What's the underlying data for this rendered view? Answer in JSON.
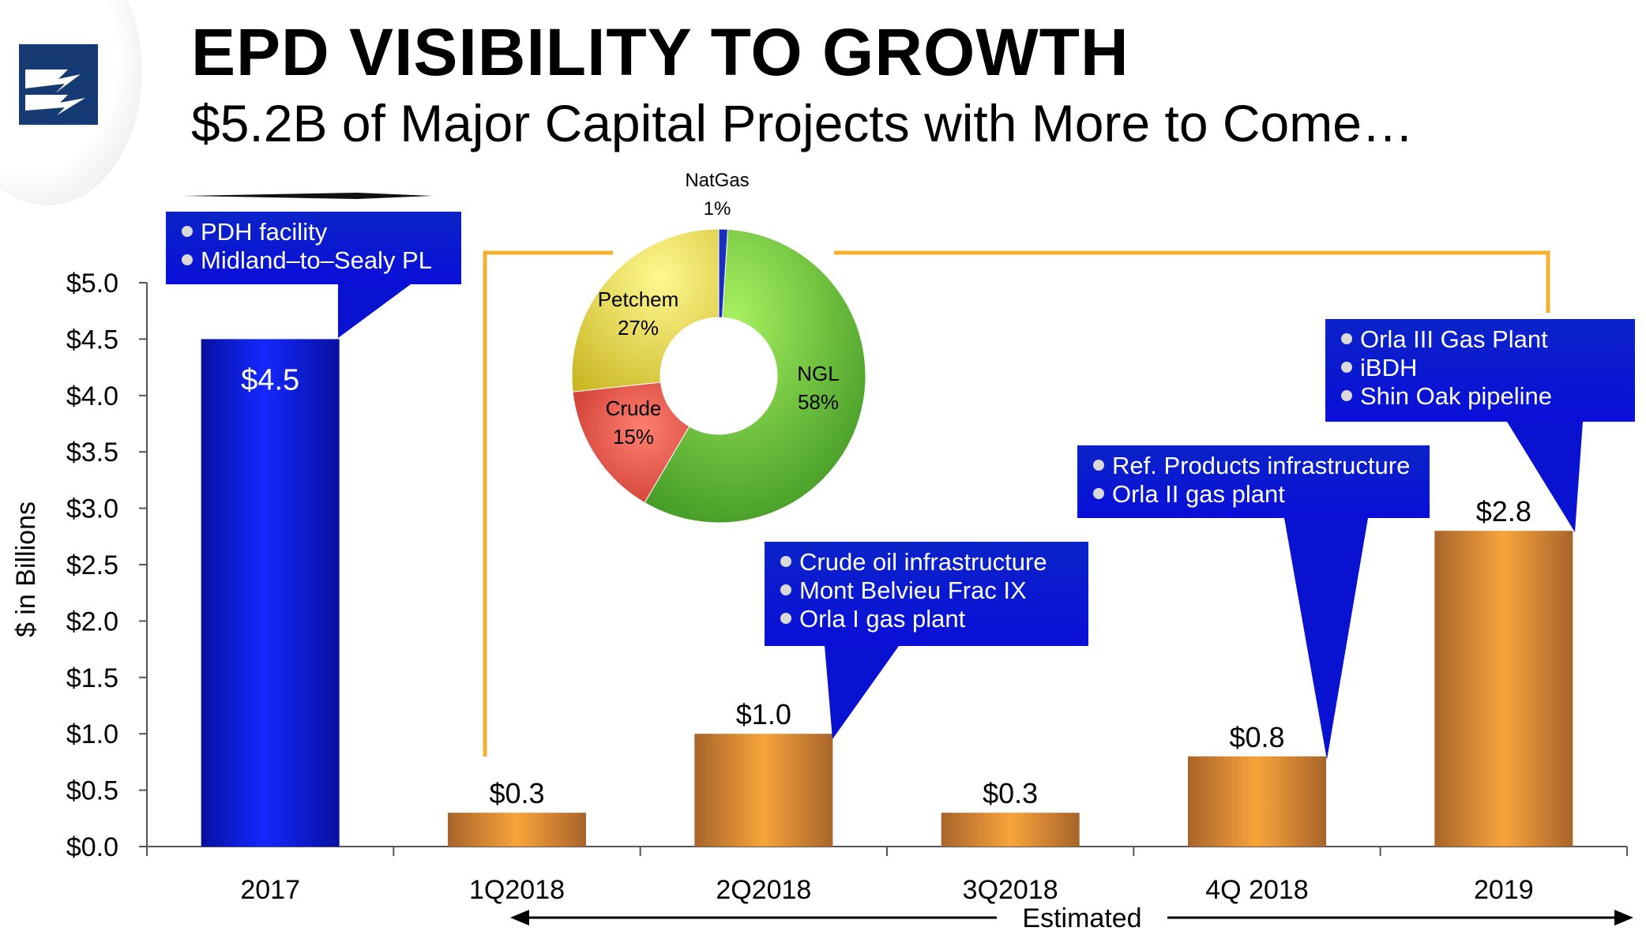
{
  "header": {
    "title": "EPD VISIBILITY TO GROWTH",
    "subtitle": "$5.2B of Major Capital Projects with More to Come…"
  },
  "colors": {
    "historical_bar": "#0a14d0",
    "estimated_bar": "#f0a040",
    "callout": "#0a12d2",
    "connector": "#f5b030",
    "donut_ngl": "#5ab832",
    "donut_petchem": "#e6d840",
    "donut_crude": "#e05046",
    "donut_natgas": "#1a2fc0"
  },
  "icons": [
    "company-logo-icon"
  ],
  "chart_data": [
    {
      "type": "bar",
      "ylabel": "$ in Billions",
      "ylim": [
        0,
        5.0
      ],
      "yticks": [
        "$0.0",
        "$0.5",
        "$1.0",
        "$1.5",
        "$2.0",
        "$2.5",
        "$3.0",
        "$3.5",
        "$4.0",
        "$4.5",
        "$5.0"
      ],
      "categories": [
        "2017",
        "1Q2018",
        "2Q2018",
        "3Q2018",
        "4Q 2018",
        "2019"
      ],
      "values": [
        4.5,
        0.3,
        1.0,
        0.3,
        0.8,
        2.8
      ],
      "data_labels": [
        "$4.5",
        "$0.3",
        "$1.0",
        "$0.3",
        "$0.8",
        "$2.8"
      ],
      "estimated_label": "Estimated",
      "annotations": [
        {
          "category": "2017",
          "items": [
            "PDH facility",
            "Midland–to–Sealy PL"
          ]
        },
        {
          "category": "2Q2018",
          "items": [
            "Crude oil  infrastructure",
            "Mont Belvieu Frac IX",
            "Orla I gas plant"
          ]
        },
        {
          "category": "4Q 2018",
          "items": [
            "Ref. Products infrastructure",
            "Orla II gas plant"
          ]
        },
        {
          "category": "2019",
          "items": [
            "Orla III Gas Plant",
            "iBDH",
            "Shin Oak pipeline"
          ]
        }
      ]
    },
    {
      "type": "pie",
      "donut": true,
      "slices": [
        {
          "name": "NatGas",
          "value": 1,
          "label": "1%"
        },
        {
          "name": "NGL",
          "value": 58,
          "label": "58%"
        },
        {
          "name": "Crude",
          "value": 15,
          "label": "15%"
        },
        {
          "name": "Petchem",
          "value": 27,
          "label": "27%"
        }
      ]
    }
  ]
}
